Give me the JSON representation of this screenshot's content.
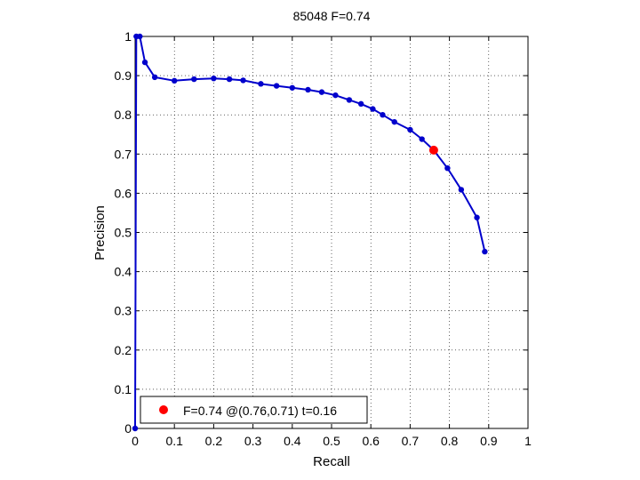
{
  "chart_data": {
    "type": "line",
    "title": "85048 F=0.74",
    "xlabel": "Recall",
    "ylabel": "Precision",
    "xlim": [
      0,
      1
    ],
    "ylim": [
      0,
      1
    ],
    "grid": true,
    "x_ticks": [
      "0",
      "0.1",
      "0.2",
      "0.3",
      "0.4",
      "0.5",
      "0.6",
      "0.7",
      "0.8",
      "0.9",
      "1"
    ],
    "y_ticks": [
      "0",
      "0.1",
      "0.2",
      "0.3",
      "0.4",
      "0.5",
      "0.6",
      "0.7",
      "0.8",
      "0.9",
      "1"
    ],
    "series": [
      {
        "color": "#0000cc",
        "points": [
          [
            0.0,
            0.0
          ],
          [
            0.003,
            1.0
          ],
          [
            0.012,
            1.0
          ],
          [
            0.025,
            0.934
          ],
          [
            0.05,
            0.896
          ],
          [
            0.1,
            0.887
          ],
          [
            0.15,
            0.891
          ],
          [
            0.2,
            0.893
          ],
          [
            0.24,
            0.891
          ],
          [
            0.275,
            0.888
          ],
          [
            0.32,
            0.879
          ],
          [
            0.36,
            0.874
          ],
          [
            0.4,
            0.869
          ],
          [
            0.44,
            0.864
          ],
          [
            0.475,
            0.858
          ],
          [
            0.51,
            0.85
          ],
          [
            0.545,
            0.838
          ],
          [
            0.575,
            0.828
          ],
          [
            0.605,
            0.815
          ],
          [
            0.63,
            0.8
          ],
          [
            0.66,
            0.782
          ],
          [
            0.7,
            0.762
          ],
          [
            0.73,
            0.738
          ],
          [
            0.76,
            0.71
          ],
          [
            0.795,
            0.664
          ],
          [
            0.83,
            0.609
          ],
          [
            0.87,
            0.538
          ],
          [
            0.89,
            0.451
          ]
        ]
      }
    ],
    "highlight_point": {
      "x": 0.76,
      "y": 0.71,
      "color": "#ff0000"
    },
    "legend": {
      "location": "bottom-left",
      "text": "F=0.74 @(0.76,0.71) t=0.16",
      "marker_color": "#ff0000"
    }
  }
}
